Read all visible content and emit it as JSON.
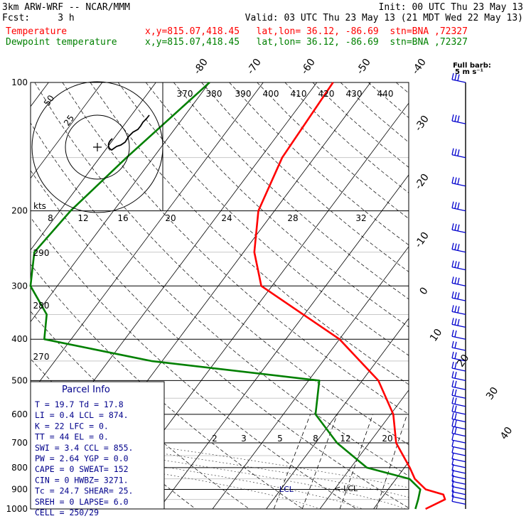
{
  "header": {
    "model": "3km ARW-WRF -- NCAR/MMM",
    "init": "Init: 00 UTC Thu 23 May 13",
    "fcst": "Fcst:     3 h",
    "valid": "Valid: 03 UTC Thu 23 May 13 (21 MDT Wed 22 May 13)",
    "temp_label": "Temperature",
    "temp_info": "x,y=815.07,418.45   lat,lon= 36.12, -86.69  stn=BNA ,72327",
    "dew_label": "Dewpoint temperature",
    "dew_info": "x,y=815.07,418.45   lat,lon= 36.12, -86.69  stn=BNA ,72327",
    "barb_key_title": "Full barb:",
    "barb_key_value": "5 m s⁻¹"
  },
  "colors": {
    "temperature": "#ff0000",
    "dewpoint": "#008000",
    "parcel": "#00008b",
    "barbs": "#0000cd",
    "grid": "#000000"
  },
  "chart_data": {
    "type": "line",
    "chart_kind": "skew-T log-P sounding",
    "pressure_levels": [
      "100",
      "200",
      "300",
      "400",
      "500",
      "600",
      "700",
      "800",
      "900",
      "1000"
    ],
    "temperature_axis_labels": [
      "-80",
      "-70",
      "-60",
      "-50",
      "-40",
      "-30",
      "-20",
      "-10",
      "0",
      "10",
      "20",
      "30",
      "40"
    ],
    "theta_labels": [
      "370",
      "380",
      "390",
      "400",
      "410",
      "420",
      "430",
      "440",
      "290",
      "280",
      "270"
    ],
    "mixing_ratio_labels": [
      "2",
      "3",
      "5",
      "8",
      "12",
      "20"
    ],
    "hodograph_speed_labels": [
      "8",
      "12",
      "16",
      "20",
      "24",
      "28",
      "32"
    ],
    "hodograph_unit": "kts",
    "hodograph_ring_labels": [
      "25",
      "50"
    ],
    "series": [
      {
        "name": "Temperature",
        "color": "#ff0000",
        "points": [
          [
            100,
            -57
          ],
          [
            150,
            -56
          ],
          [
            200,
            -53
          ],
          [
            250,
            -48
          ],
          [
            300,
            -42
          ],
          [
            400,
            -20
          ],
          [
            500,
            -7
          ],
          [
            600,
            0.5
          ],
          [
            700,
            5
          ],
          [
            800,
            11
          ],
          [
            850,
            13.5
          ],
          [
            900,
            17
          ],
          [
            925,
            21
          ],
          [
            950,
            22
          ],
          [
            1000,
            19.7
          ]
        ]
      },
      {
        "name": "Dewpoint temperature",
        "color": "#008000",
        "points": [
          [
            100,
            -80
          ],
          [
            150,
            -85
          ],
          [
            200,
            -88
          ],
          [
            250,
            -89
          ],
          [
            300,
            -85
          ],
          [
            350,
            -78
          ],
          [
            400,
            -75
          ],
          [
            450,
            -52
          ],
          [
            500,
            -18
          ],
          [
            600,
            -14
          ],
          [
            700,
            -6
          ],
          [
            800,
            3
          ],
          [
            850,
            12.5
          ],
          [
            900,
            16
          ],
          [
            950,
            17
          ],
          [
            1000,
            17.8
          ]
        ]
      }
    ],
    "lcl_label": "LCL",
    "lcl_marker": "<-LCL",
    "lcl_pressure": 874
  },
  "parcel_info": {
    "title": "Parcel Info",
    "rows": [
      "T   =   19.7  Td  =   17.8",
      "LI  =    0.4  LCL =   874.",
      "K   =     22  LFC =     0.",
      "TT  =     44  EL  =     0.",
      "SWI =    3.4  CCL =   855.",
      "PW  =   2.64  YGP =    0.0",
      "CAPE =     0  SWEAT=   152",
      "CIN  =     0  HWBZ= 3271.",
      "Tc  =   24.7  SHEAR=   25.",
      "SREH =     0  LAPSE=   6.0",
      "CELL = 250/29"
    ]
  }
}
